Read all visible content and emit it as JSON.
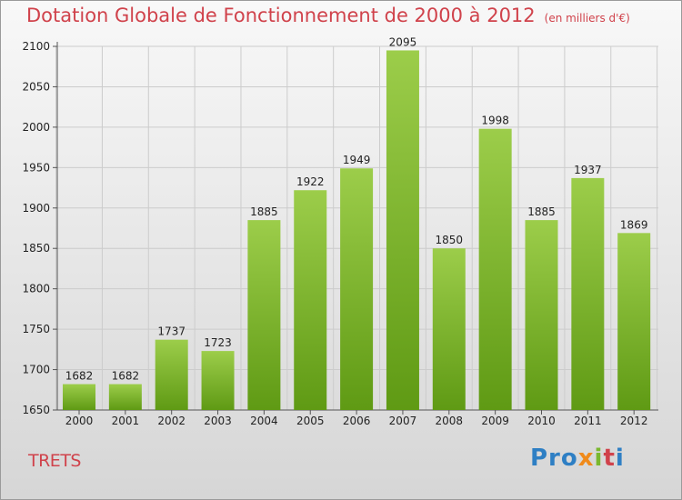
{
  "title": "Dotation Globale de Fonctionnement de 2000 à 2012",
  "subtitle": "(en milliers d'€)",
  "commune": "TRETS",
  "brand": {
    "p1": "Pro",
    "p2": "x",
    "p3": "i",
    "p4": "t",
    "p5": "i"
  },
  "colors": {
    "bar_top": "#9ccd4a",
    "bar_bottom": "#5f9a14",
    "title": "#d0424b",
    "grid": "#cccccc"
  },
  "chart_data": {
    "type": "bar",
    "categories": [
      "2000",
      "2001",
      "2002",
      "2003",
      "2004",
      "2005",
      "2006",
      "2007",
      "2008",
      "2009",
      "2010",
      "2011",
      "2012"
    ],
    "values": [
      1682,
      1682,
      1737,
      1723,
      1885,
      1922,
      1949,
      2095,
      1850,
      1998,
      1885,
      1937,
      1869
    ],
    "ylim": [
      1650,
      2100
    ],
    "yticks": [
      1650,
      1700,
      1750,
      1800,
      1850,
      1900,
      1950,
      2000,
      2050,
      2100
    ],
    "grid": true
  }
}
